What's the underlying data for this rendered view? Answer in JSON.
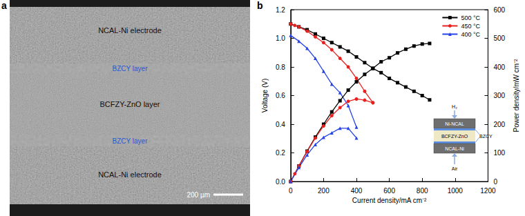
{
  "panel_a": {
    "label": "a",
    "layers": [
      {
        "label": "NCAL-Ni electrode"
      },
      {
        "label": "BZCY layer"
      },
      {
        "label": "BCFZY-ZnO layer"
      },
      {
        "label": "BZCY layer"
      },
      {
        "label": "NCAL-Ni electrode"
      }
    ],
    "scale_bar": "200 µm"
  },
  "panel_b": {
    "label": "b",
    "inset": {
      "top_gas": "H₂",
      "top_layer": "Ni-NCAL",
      "middle_layer": "BCFZY-ZnO",
      "thin_layers": "BZCY",
      "bottom_layer": "NCAL-Ni",
      "bottom_gas": "Air"
    }
  },
  "chart_data": {
    "type": "line",
    "x_label": "Current density/mA cm⁻²",
    "y_label": "Voltage (V)",
    "y2_label": "Power density/mW cm⁻²",
    "xlim": [
      0,
      1200
    ],
    "xticks": [
      0,
      200,
      400,
      600,
      800,
      1000,
      1200
    ],
    "ylim": [
      0,
      1.2
    ],
    "yticks": [
      {
        "value": 0,
        "label": "0.0"
      },
      0.2,
      0.4,
      0.6,
      0.8,
      {
        "value": 1,
        "label": "1.0"
      },
      1.2
    ],
    "y2lim": [
      0,
      600
    ],
    "y2ticks": [
      0,
      100,
      200,
      300,
      400,
      500,
      600
    ],
    "grid": false,
    "legend": "upper right",
    "series": [
      {
        "name": "500 °C",
        "color": "#000000",
        "marker": "square",
        "axis": "y",
        "x": [
          0,
          50,
          100,
          150,
          200,
          250,
          300,
          350,
          400,
          450,
          500,
          550,
          600,
          650,
          700,
          750,
          800,
          845
        ],
        "values": [
          1.1,
          1.08,
          1.06,
          1.03,
          1.0,
          0.97,
          0.94,
          0.91,
          0.87,
          0.83,
          0.79,
          0.76,
          0.72,
          0.69,
          0.66,
          0.63,
          0.6,
          0.57
        ]
      },
      {
        "name": "450 °C",
        "color": "#e8211f",
        "marker": "circle",
        "axis": "y",
        "x": [
          0,
          25,
          50,
          100,
          150,
          200,
          250,
          300,
          350,
          400,
          450,
          500
        ],
        "values": [
          1.1,
          1.09,
          1.08,
          1.05,
          1.01,
          0.97,
          0.92,
          0.86,
          0.8,
          0.72,
          0.63,
          0.55
        ]
      },
      {
        "name": "400 °C",
        "color": "#2443e6",
        "marker": "triangle",
        "axis": "y",
        "x": [
          0,
          50,
          100,
          150,
          200,
          250,
          300,
          350,
          400
        ],
        "values": [
          1.02,
          0.98,
          0.93,
          0.86,
          0.77,
          0.68,
          0.62,
          0.53,
          0.38
        ]
      },
      {
        "name": "500 °C",
        "color": "#000000",
        "marker": "square",
        "axis": "y2",
        "x": [
          0,
          50,
          100,
          150,
          200,
          250,
          300,
          350,
          400,
          450,
          500,
          550,
          600,
          650,
          700,
          750,
          800,
          845
        ],
        "values": [
          0,
          54,
          106,
          155,
          200,
          243,
          282,
          319,
          348,
          374,
          395,
          418,
          432,
          449,
          462,
          473,
          480,
          482
        ]
      },
      {
        "name": "450 °C",
        "color": "#e8211f",
        "marker": "circle",
        "axis": "y2",
        "x": [
          0,
          25,
          50,
          100,
          150,
          200,
          250,
          300,
          350,
          400,
          450,
          500
        ],
        "values": [
          0,
          27,
          54,
          105,
          152,
          194,
          230,
          258,
          280,
          288,
          284,
          275
        ]
      },
      {
        "name": "400 °C",
        "color": "#2443e6",
        "marker": "triangle",
        "axis": "y2",
        "x": [
          0,
          50,
          100,
          150,
          200,
          250,
          300,
          350,
          400
        ],
        "values": [
          0,
          49,
          93,
          129,
          154,
          170,
          186,
          186,
          152
        ]
      }
    ]
  }
}
